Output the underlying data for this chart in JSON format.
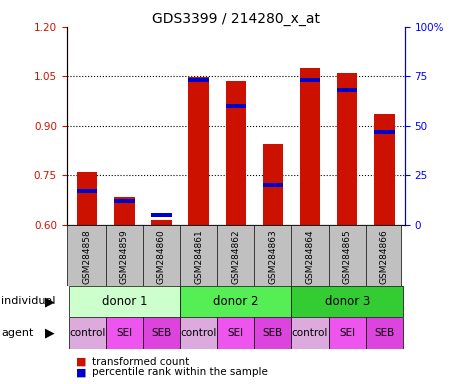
{
  "title": "GDS3399 / 214280_x_at",
  "samples": [
    "GSM284858",
    "GSM284859",
    "GSM284860",
    "GSM284861",
    "GSM284862",
    "GSM284863",
    "GSM284864",
    "GSM284865",
    "GSM284866"
  ],
  "transformed_count": [
    0.76,
    0.685,
    0.615,
    1.048,
    1.035,
    0.845,
    1.075,
    1.06,
    0.935
  ],
  "percentile_rank": [
    17,
    12,
    5,
    73,
    60,
    20,
    73,
    68,
    47
  ],
  "ylim_left": [
    0.6,
    1.2
  ],
  "ylim_right": [
    0,
    100
  ],
  "yticks_left": [
    0.6,
    0.75,
    0.9,
    1.05,
    1.2
  ],
  "yticks_right": [
    0,
    25,
    50,
    75,
    100
  ],
  "ytick_labels_right": [
    "0",
    "25",
    "50",
    "75",
    "100%"
  ],
  "bar_color_red": "#cc1100",
  "bar_color_blue": "#0000cc",
  "bar_width": 0.55,
  "donors": [
    {
      "label": "donor 1",
      "start": 0,
      "end": 3,
      "color": "#ccffcc"
    },
    {
      "label": "donor 2",
      "start": 3,
      "end": 6,
      "color": "#55ee55"
    },
    {
      "label": "donor 3",
      "start": 6,
      "end": 9,
      "color": "#33cc33"
    }
  ],
  "agents": [
    "control",
    "SEI",
    "SEB",
    "control",
    "SEI",
    "SEB",
    "control",
    "SEI",
    "SEB"
  ],
  "agent_colors_bg": [
    "#ddaadd",
    "#ee55ee",
    "#dd44dd",
    "#ddaadd",
    "#ee55ee",
    "#dd44dd",
    "#ddaadd",
    "#ee55ee",
    "#dd44dd"
  ],
  "tick_bg_color": "#c0c0c0",
  "label_individual": "individual",
  "label_agent": "agent",
  "legend_red": "transformed count",
  "legend_blue": "percentile rank within the sample"
}
